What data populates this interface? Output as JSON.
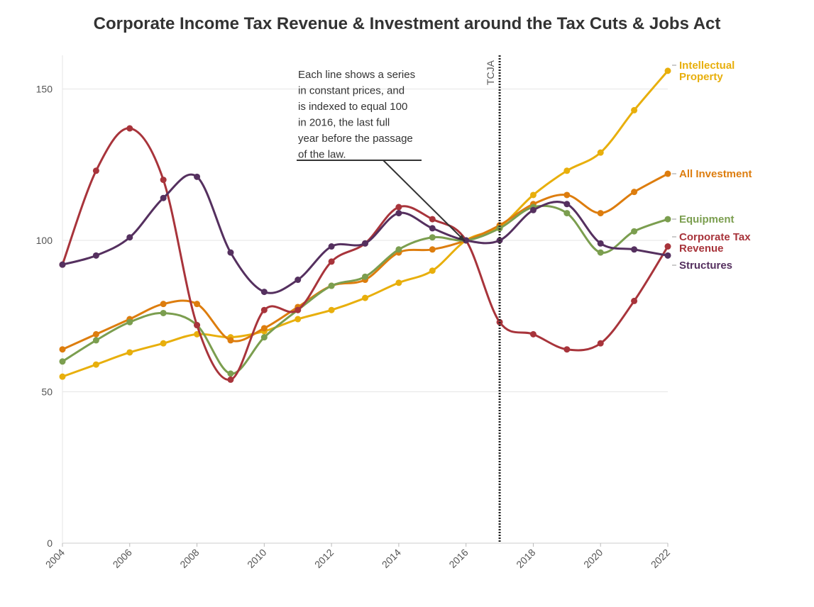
{
  "chart_data": {
    "type": "line",
    "title": "Corporate Income Tax Revenue & Investment around the Tax Cuts & Jobs Act",
    "xlabel": "",
    "ylabel": "",
    "x": [
      2004,
      2005,
      2006,
      2007,
      2008,
      2009,
      2010,
      2011,
      2012,
      2013,
      2014,
      2015,
      2016,
      2017,
      2018,
      2019,
      2020,
      2021,
      2022
    ],
    "xticks": [
      "2004",
      "2006",
      "2008",
      "2010",
      "2012",
      "2014",
      "2016",
      "2018",
      "2020",
      "2022"
    ],
    "yticks": [
      "0",
      "50",
      "100",
      "150"
    ],
    "ylim": [
      0,
      160
    ],
    "grid": "horizontal",
    "legend": "right, inline labels at line ends",
    "series": [
      {
        "name": "Intellectual Property",
        "color": "#e8af0c",
        "values": [
          55,
          59,
          63,
          66,
          69,
          68,
          70,
          74,
          77,
          81,
          86,
          90,
          100,
          104.5,
          115,
          123,
          129,
          143,
          156
        ]
      },
      {
        "name": "All Investment",
        "color": "#dd7d0e",
        "values": [
          64,
          69,
          74,
          79,
          79,
          67,
          71,
          78,
          85,
          87,
          96,
          97,
          100,
          105,
          112,
          115,
          109,
          116,
          122
        ]
      },
      {
        "name": "Equipment",
        "color": "#7b9e4f",
        "values": [
          60,
          67,
          73,
          76,
          72,
          56,
          68,
          77,
          85,
          88,
          97,
          101,
          100,
          104,
          111,
          109,
          96,
          103,
          107
        ]
      },
      {
        "name": "Corporate Tax Revenue",
        "color": "#a8343b",
        "values": [
          92,
          123,
          137,
          120,
          72,
          54,
          77,
          77,
          93,
          99,
          111,
          107,
          100,
          73,
          69,
          64,
          66,
          80,
          98
        ]
      },
      {
        "name": "Structures",
        "color": "#55305f",
        "values": [
          92,
          95,
          101,
          114,
          121,
          96,
          83,
          87,
          98,
          99,
          109,
          104,
          100,
          100,
          110,
          112,
          99,
          97,
          95
        ]
      }
    ],
    "annotations": {
      "event_line": {
        "x": 2017,
        "label": "TCJA"
      },
      "note_lines": [
        "Each line shows a series",
        "in constant prices, and",
        "is indexed to equal 100",
        "in 2016, the last full",
        "year before the passage",
        "of the law."
      ]
    }
  }
}
